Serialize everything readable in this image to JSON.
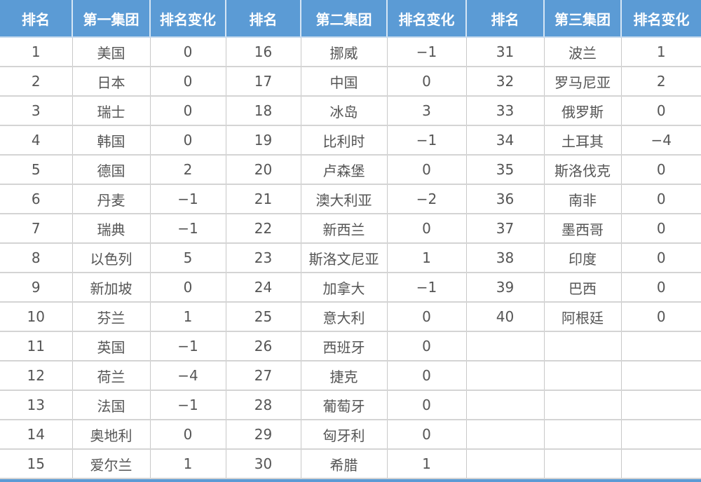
{
  "headers": [
    "排名",
    "第一集团",
    "排名变化",
    "排名",
    "第二集团",
    "排名变化",
    "排名",
    "第三集团",
    "排名变化"
  ],
  "rows": [
    [
      "1",
      "美国",
      "0",
      "16",
      "挪威",
      "−1",
      "31",
      "波兰",
      "1"
    ],
    [
      "2",
      "日本",
      "0",
      "17",
      "中国",
      "0",
      "32",
      "罗马尼亚",
      "2"
    ],
    [
      "3",
      "瑞士",
      "0",
      "18",
      "冰岛",
      "3",
      "33",
      "俄罗斯",
      "0"
    ],
    [
      "4",
      "韩国",
      "0",
      "19",
      "比利时",
      "−1",
      "34",
      "土耳其",
      "−4"
    ],
    [
      "5",
      "德国",
      "2",
      "20",
      "卢森堡",
      "0",
      "35",
      "斯洛伐克",
      "0"
    ],
    [
      "6",
      "丹麦",
      "−1",
      "21",
      "澳大利亚",
      "−2",
      "36",
      "南非",
      "0"
    ],
    [
      "7",
      "瑞典",
      "−1",
      "22",
      "新西兰",
      "0",
      "37",
      "墨西哥",
      "0"
    ],
    [
      "8",
      "以色列",
      "5",
      "23",
      "斯洛文尼亚",
      "1",
      "38",
      "印度",
      "0"
    ],
    [
      "9",
      "新加坡",
      "0",
      "24",
      "加拿大",
      "−1",
      "39",
      "巴西",
      "0"
    ],
    [
      "10",
      "芬兰",
      "1",
      "25",
      "意大利",
      "0",
      "40",
      "阿根廷",
      "0"
    ],
    [
      "11",
      "英国",
      "−1",
      "26",
      "西班牙",
      "0",
      "",
      "",
      ""
    ],
    [
      "12",
      "荷兰",
      "−4",
      "27",
      "捷克",
      "0",
      "",
      "",
      ""
    ],
    [
      "13",
      "法国",
      "−1",
      "28",
      "葡萄牙",
      "0",
      "",
      "",
      ""
    ],
    [
      "14",
      "奥地利",
      "0",
      "29",
      "匈牙利",
      "0",
      "",
      "",
      ""
    ],
    [
      "15",
      "爱尔兰",
      "1",
      "30",
      "希腊",
      "1",
      "",
      "",
      ""
    ]
  ],
  "colors": {
    "header": "#5b9bd5"
  }
}
